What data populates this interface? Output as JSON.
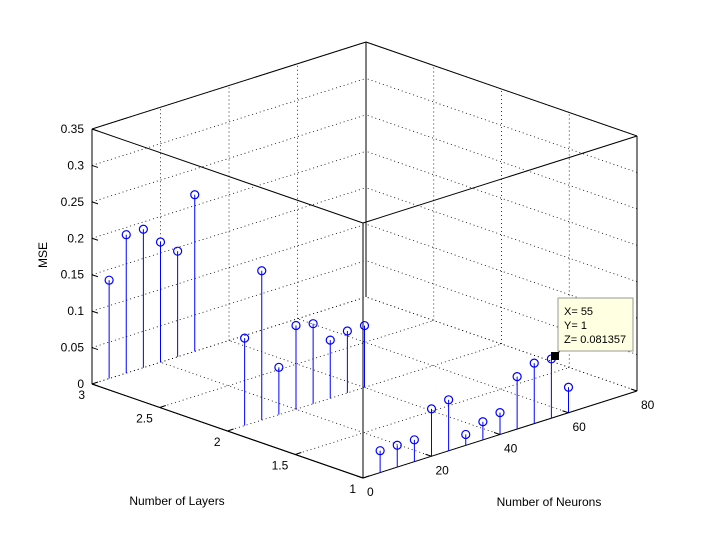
{
  "chart_data": {
    "type": "stem3",
    "title": "",
    "xlabel": "Number of Neurons",
    "ylabel": "Number of Layers",
    "zlabel": "MSE",
    "xlim": [
      0,
      80
    ],
    "ylim": [
      1,
      3
    ],
    "zlim": [
      0,
      0.35
    ],
    "x_ticks": [
      "0",
      "20",
      "40",
      "60",
      "80"
    ],
    "y_ticks": [
      "1",
      "1.5",
      "2",
      "2.5",
      "3"
    ],
    "z_ticks": [
      "0",
      "0.05",
      "0.1",
      "0.15",
      "0.2",
      "0.25",
      "0.3",
      "0.35"
    ],
    "grid": true,
    "colors": {
      "stem": "#0000ff",
      "axes": "#000000",
      "grid": "#000000",
      "datatip_bg": "#ffffe1"
    },
    "series": [
      {
        "y": 3,
        "points": [
          {
            "x": 5,
            "z": 0.135
          },
          {
            "x": 10,
            "z": 0.19
          },
          {
            "x": 15,
            "z": 0.19
          },
          {
            "x": 20,
            "z": 0.165
          },
          {
            "x": 25,
            "z": 0.145
          },
          {
            "x": 30,
            "z": 0.215
          }
        ]
      },
      {
        "y": 2,
        "points": [
          {
            "x": 5,
            "z": 0.12
          },
          {
            "x": 10,
            "z": 0.205
          },
          {
            "x": 15,
            "z": 0.065
          },
          {
            "x": 20,
            "z": 0.115
          },
          {
            "x": 25,
            "z": 0.11
          },
          {
            "x": 30,
            "z": 0.08
          },
          {
            "x": 35,
            "z": 0.085
          },
          {
            "x": 40,
            "z": 0.085
          }
        ]
      },
      {
        "y": 1,
        "points": [
          {
            "x": 5,
            "z": 0.03
          },
          {
            "x": 10,
            "z": 0.03
          },
          {
            "x": 15,
            "z": 0.03
          },
          {
            "x": 20,
            "z": 0.065
          },
          {
            "x": 25,
            "z": 0.07
          },
          {
            "x": 30,
            "z": 0.015
          },
          {
            "x": 35,
            "z": 0.025
          },
          {
            "x": 40,
            "z": 0.03
          },
          {
            "x": 45,
            "z": 0.072
          },
          {
            "x": 50,
            "z": 0.083
          },
          {
            "x": 55,
            "z": 0.081357,
            "highlight": true
          },
          {
            "x": 60,
            "z": 0.035
          }
        ]
      }
    ],
    "datatip": {
      "x_text": "X= 55",
      "y_text": "Y= 1",
      "z_text": "Z= 0.081357"
    }
  }
}
